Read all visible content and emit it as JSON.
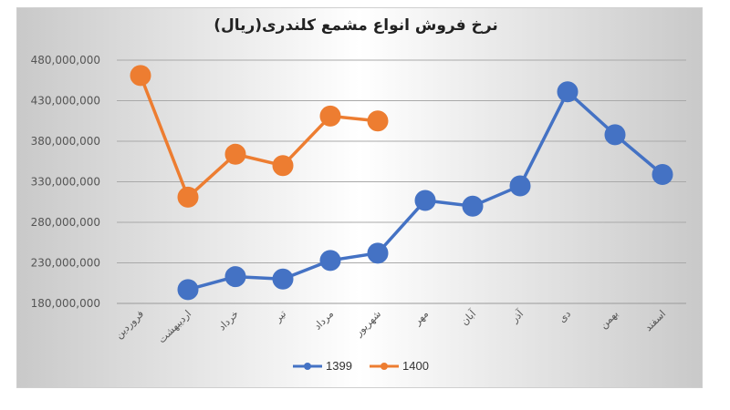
{
  "chart_data": {
    "type": "line",
    "title": "نرخ فروش انواع مشمع کلندری(ریال)",
    "categories": [
      "فروردین",
      "اردیبهشت",
      "خرداد",
      "تیر",
      "مرداد",
      "شهریور",
      "مهر",
      "آبان",
      "آذر",
      "دی",
      "بهمن",
      "اسفند"
    ],
    "yticks": [
      "180,000,000",
      "230,000,000",
      "280,000,000",
      "330,000,000",
      "380,000,000",
      "430,000,000",
      "480,000,000"
    ],
    "ylim": [
      180000000,
      480000000
    ],
    "grid": true,
    "legend_position": "bottom",
    "series": [
      {
        "name": "1399",
        "color": "#4472C4",
        "values": [
          null,
          197000000,
          213000000,
          210000000,
          233000000,
          242000000,
          307000000,
          300000000,
          325000000,
          441000000,
          388000000,
          339000000
        ]
      },
      {
        "name": "1400",
        "color": "#ED7D31",
        "values": [
          461000000,
          311000000,
          364000000,
          350000000,
          411000000,
          405000000,
          null,
          null,
          null,
          null,
          null,
          null
        ]
      }
    ]
  }
}
